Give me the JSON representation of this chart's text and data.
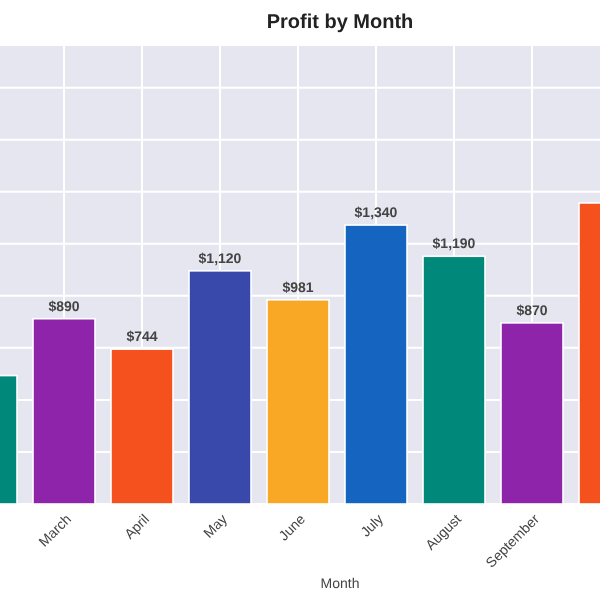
{
  "chart_data": {
    "type": "bar",
    "title": "Profit by Month",
    "xlabel": "Month",
    "categories": [
      null,
      "March",
      "April",
      "May",
      "June",
      "July",
      "August",
      "September",
      null
    ],
    "values": [
      617,
      890,
      744,
      1120,
      981,
      1340,
      1190,
      870,
      1446
    ],
    "colors": [
      "#00897b",
      "#8e24aa",
      "#f4511e",
      "#3949ab",
      "#f9a825",
      "#1565c0",
      "#00897b",
      "#8e24aa",
      "#f4511e"
    ],
    "value_labels": [
      null,
      "$890",
      "$744",
      "$1,120",
      "$981",
      "$1,340",
      "$1,190",
      "$870",
      null
    ],
    "ylim": [
      0,
      2200
    ],
    "yticks": [
      {
        "value": 0,
        "label": null
      },
      {
        "value": 250,
        "label": null
      },
      {
        "value": 500,
        "label": null
      },
      {
        "value": 750,
        "label": null
      },
      {
        "value": 1000,
        "label": null
      },
      {
        "value": 1250,
        "label": null
      },
      {
        "value": 1500,
        "label": null
      },
      {
        "value": 1750,
        "label": null
      },
      {
        "value": 2000,
        "label": null
      }
    ],
    "tick_labels": "x",
    "grid": true
  }
}
